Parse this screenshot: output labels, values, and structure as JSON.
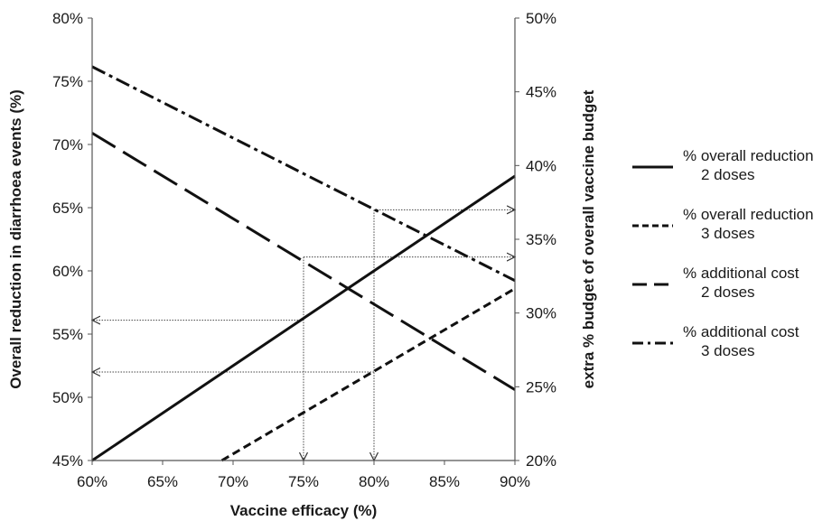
{
  "chart_data": {
    "type": "line",
    "xlabel": "Vaccine efficacy (%)",
    "ylabel_left": "Overall reduction in diarrhoea events (%)",
    "ylabel_right": "extra % budget of overall vaccine budget",
    "x_ticks": [
      "60%",
      "65%",
      "70%",
      "75%",
      "80%",
      "85%",
      "90%"
    ],
    "y_left_ticks": [
      "45%",
      "50%",
      "55%",
      "60%",
      "65%",
      "70%",
      "75%",
      "80%"
    ],
    "y_right_ticks": [
      "20%",
      "25%",
      "30%",
      "35%",
      "40%",
      "45%",
      "50%"
    ],
    "xlim": [
      60,
      90
    ],
    "ylim_left": [
      45,
      80
    ],
    "ylim_right": [
      20,
      50
    ],
    "grid": false,
    "legend_position": "right",
    "series": [
      {
        "name_line1": "% overall reduction",
        "name_line2": "2 doses",
        "axis": "left",
        "dash": "solid",
        "x": [
          60,
          90
        ],
        "y": [
          45,
          67.5
        ]
      },
      {
        "name_line1": "% overall reduction",
        "name_line2": "3 doses",
        "axis": "left",
        "dash": "short-dash",
        "x": [
          69.2,
          90
        ],
        "y": [
          45,
          58.6
        ]
      },
      {
        "name_line1": "% additional cost",
        "name_line2": "2 doses",
        "axis": "right",
        "dash": "long-dash",
        "x": [
          60,
          90
        ],
        "y": [
          42.2,
          24.8
        ]
      },
      {
        "name_line1": "% additional cost",
        "name_line2": "3 doses",
        "axis": "right",
        "dash": "dash-dot",
        "x": [
          60,
          90
        ],
        "y": [
          46.7,
          32.2
        ]
      }
    ],
    "annotations": [
      {
        "kind": "vertical-arrow",
        "x": 75,
        "from_right_y": 33.8,
        "to_left_y": 45
      },
      {
        "kind": "vertical-arrow",
        "x": 80,
        "from_right_y": 37,
        "to_left_y": 45
      },
      {
        "kind": "horizontal-arrow",
        "axis": "right",
        "y": 33.8,
        "from_x": 75,
        "to_x": 90
      },
      {
        "kind": "horizontal-arrow",
        "axis": "right",
        "y": 37,
        "from_x": 80,
        "to_x": 90
      },
      {
        "kind": "horizontal-arrow",
        "axis": "left",
        "y": 56.1,
        "from_x": 75,
        "to_x": 60
      },
      {
        "kind": "horizontal-arrow",
        "axis": "left",
        "y": 52,
        "from_x": 80,
        "to_x": 60
      }
    ]
  }
}
